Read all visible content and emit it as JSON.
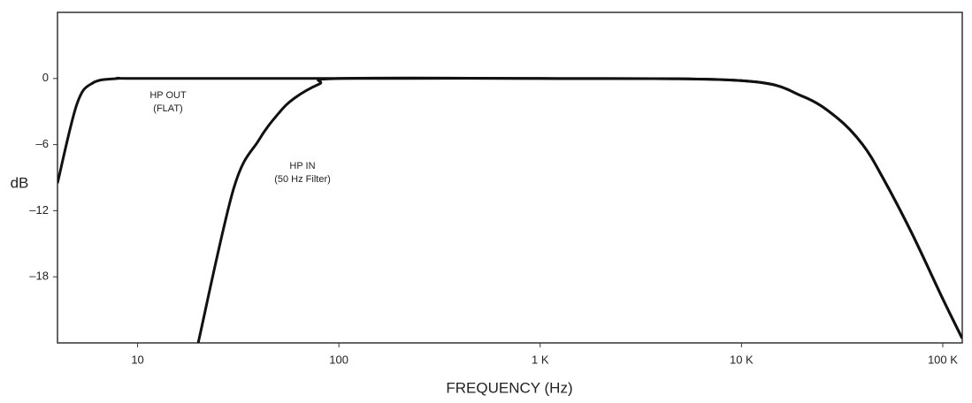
{
  "chart_data": {
    "type": "line",
    "x_label": "FREQUENCY (Hz)",
    "y_label": "dB",
    "xscale": "log",
    "xlim": [
      4,
      125000
    ],
    "ylim": [
      -24,
      6
    ],
    "xticks": [
      10,
      100,
      {
        "value": 1000,
        "label": "1 K"
      },
      {
        "value": 10000,
        "label": "10 K"
      },
      {
        "value": 100000,
        "label": "100 K"
      }
    ],
    "yticks": [
      0,
      {
        "value": -6,
        "label": "–6"
      },
      {
        "value": -12,
        "label": "–12"
      },
      {
        "value": -18,
        "label": "–18"
      }
    ],
    "grid": false,
    "series": [
      {
        "name": "HP OUT",
        "sublabel": "(FLAT)",
        "color": "#111111",
        "x": [
          4,
          5,
          6,
          8,
          10,
          100,
          1000,
          10000,
          20000,
          30000,
          40000,
          50000,
          70000,
          100000,
          125000
        ],
        "values": [
          -9.5,
          -2.3,
          -0.4,
          0,
          0,
          0,
          0,
          -0.2,
          -1.6,
          -3.6,
          -6,
          -8.9,
          -14,
          -20,
          -23.6
        ]
      },
      {
        "name": "HP IN",
        "sublabel": "(50 Hz Filter)",
        "color": "#111111",
        "x": [
          20,
          30,
          40,
          50,
          60,
          80,
          100,
          1000,
          10000,
          20000,
          30000,
          40000,
          50000,
          70000,
          100000,
          125000
        ],
        "values": [
          -24,
          -10,
          -5.6,
          -3.2,
          -1.8,
          -0.5,
          0,
          0,
          -0.2,
          -1.6,
          -3.6,
          -6,
          -8.9,
          -14,
          -20,
          -23.6
        ]
      }
    ]
  }
}
